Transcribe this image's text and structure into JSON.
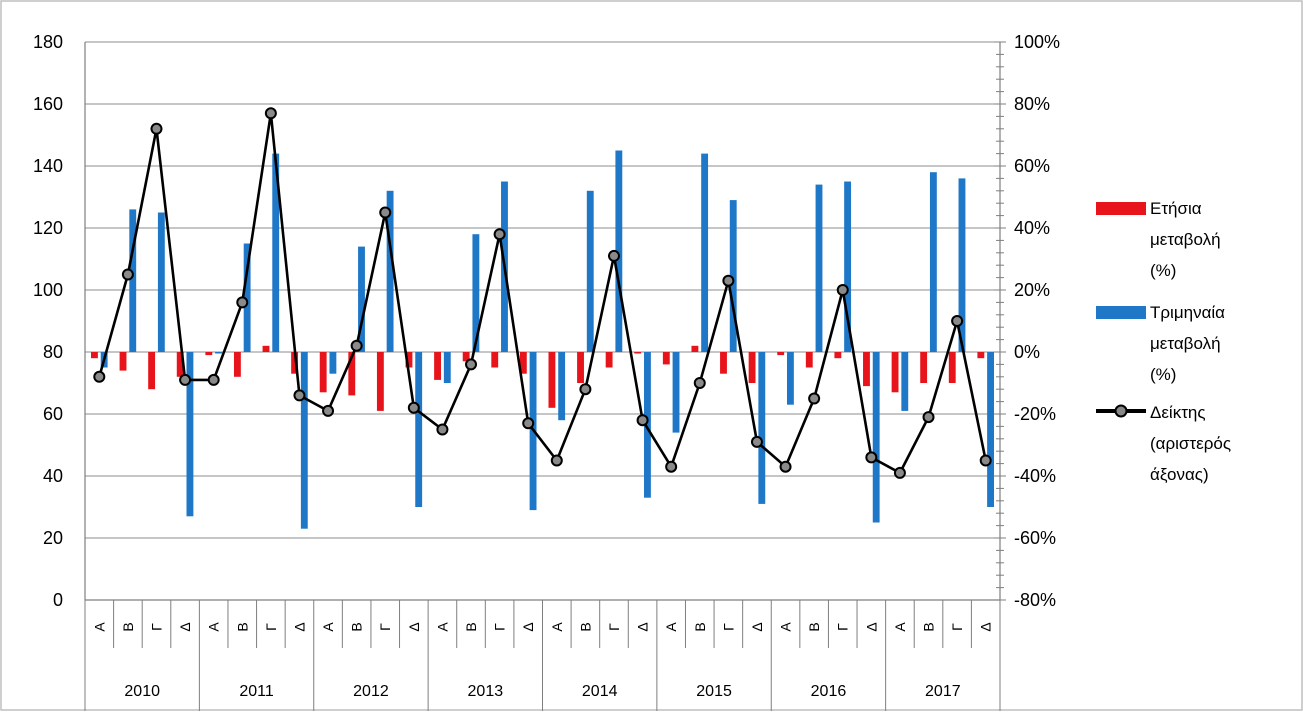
{
  "chart_data": {
    "type": "bar",
    "left_axis": {
      "min": 0,
      "max": 180,
      "step": 20,
      "ticks": [
        "0",
        "20",
        "40",
        "60",
        "80",
        "100",
        "120",
        "140",
        "160",
        "180"
      ]
    },
    "right_axis": {
      "min": -80,
      "max": 100,
      "step": 20,
      "ticks": [
        "-80%",
        "-60%",
        "-40%",
        "-20%",
        "0%",
        "20%",
        "40%",
        "60%",
        "80%",
        "100%"
      ]
    },
    "quarters": [
      "Α",
      "Β",
      "Γ",
      "Δ"
    ],
    "years": [
      "2010",
      "2011",
      "2012",
      "2013",
      "2014",
      "2015",
      "2016",
      "2017"
    ],
    "grid": "horizontal",
    "legend_position": "right",
    "series": [
      {
        "name": "Ετήσια μεταβολή (%)",
        "axis": "right",
        "type": "bar",
        "color": "#e8141b",
        "values": [
          -2,
          -6,
          -12,
          -8,
          -1,
          -8,
          2,
          -7,
          -13,
          -14,
          -19,
          -5,
          -9,
          -3,
          -5,
          -7,
          -18,
          -10,
          -5,
          0,
          -4,
          2,
          -7,
          -10,
          -1,
          -5,
          -2,
          -11,
          -13,
          -10,
          -10,
          -2
        ]
      },
      {
        "name": "Τριμηναία μεταβολή (%)",
        "axis": "right",
        "type": "bar",
        "color": "#1f77c8",
        "values": [
          -5,
          46,
          45,
          -53,
          0,
          35,
          64,
          -57,
          -7,
          34,
          52,
          -50,
          -10,
          38,
          55,
          -51,
          -22,
          52,
          65,
          -47,
          -26,
          64,
          49,
          -49,
          -17,
          54,
          55,
          -55,
          -19,
          58,
          56,
          -50
        ]
      },
      {
        "name": "Δείκτης (αριστερός άξονας)",
        "axis": "left",
        "type": "line",
        "color": "#000000",
        "values": [
          72,
          105,
          152,
          71,
          71,
          96,
          157,
          66,
          61,
          82,
          125,
          62,
          55,
          76,
          118,
          57,
          45,
          68,
          111,
          58,
          43,
          70,
          103,
          51,
          43,
          65,
          100,
          46,
          41,
          59,
          90,
          45
        ]
      }
    ]
  },
  "legend": {
    "annual": [
      "Ετήσια",
      "μεταβολή",
      "(%)"
    ],
    "quarterly": [
      "Τριμηναία",
      "μεταβολή",
      "(%)"
    ],
    "index": [
      "Δείκτης",
      "(αριστερός",
      "άξονας)"
    ]
  }
}
